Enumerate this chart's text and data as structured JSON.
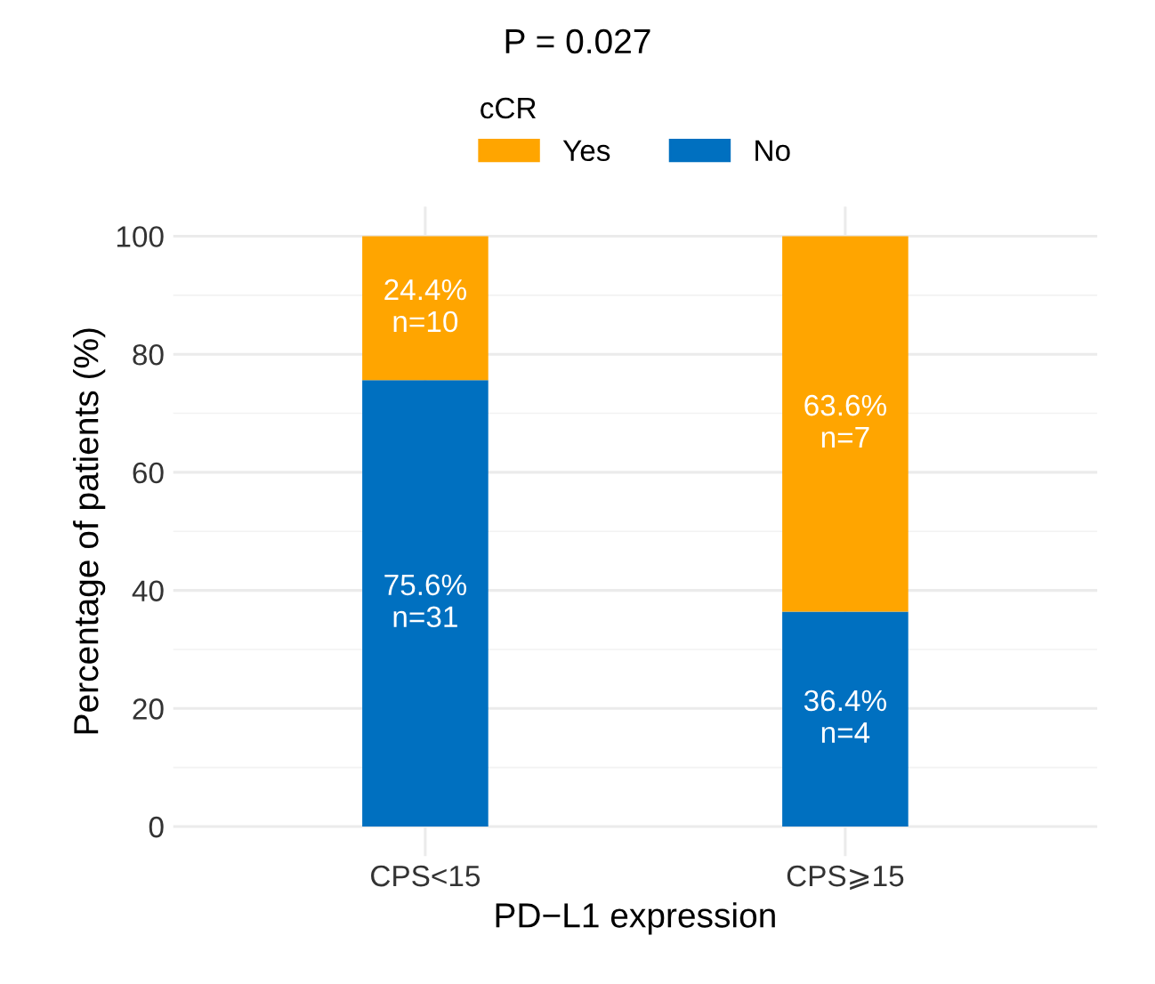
{
  "chart_data": {
    "type": "bar",
    "stacked": true,
    "title": "P = 0.027",
    "xlabel": "PD−L1 expression",
    "ylabel": "Percentage of patients (%)",
    "legend_title": "cCR",
    "legend": "top",
    "categories": [
      "CPS<15",
      "CPS⩾15"
    ],
    "series": [
      {
        "name": "No",
        "color": "#0070c0",
        "values": [
          75.6,
          36.4
        ],
        "value_labels": [
          "75.6%\nn=31",
          "36.4%\nn=4"
        ]
      },
      {
        "name": "Yes",
        "color": "#ffa500",
        "values": [
          24.4,
          63.6
        ],
        "value_labels": [
          "24.4%\nn=10",
          "63.6%\nn=7"
        ]
      }
    ],
    "ylim": [
      -5,
      105
    ],
    "yticks": [
      0,
      20,
      40,
      60,
      80,
      100
    ],
    "grid": true
  }
}
